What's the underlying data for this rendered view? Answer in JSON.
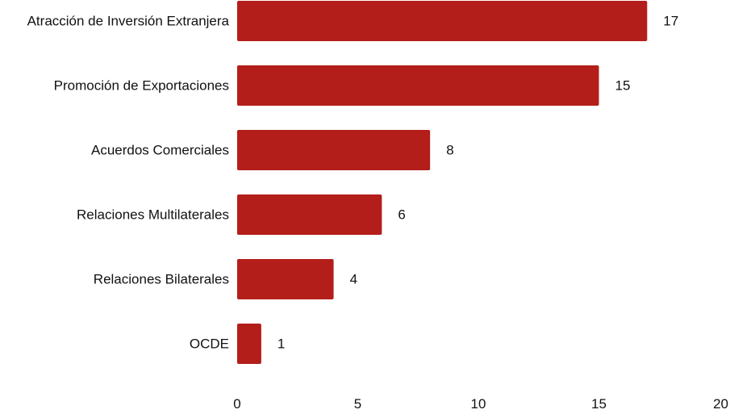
{
  "chart_data": {
    "type": "bar",
    "orientation": "horizontal",
    "categories": [
      "Atracción de Inversión Extranjera",
      "Promoción de Exportaciones",
      "Acuerdos Comerciales",
      "Relaciones Multilaterales",
      "Relaciones Bilaterales",
      "OCDE"
    ],
    "values": [
      17,
      15,
      8,
      6,
      4,
      1
    ],
    "xlim": [
      0,
      20
    ],
    "xticks": [
      0,
      5,
      10,
      15,
      20
    ],
    "data_labels": true,
    "grid": false,
    "legend": "none",
    "bar_color": "#b31e1a"
  }
}
